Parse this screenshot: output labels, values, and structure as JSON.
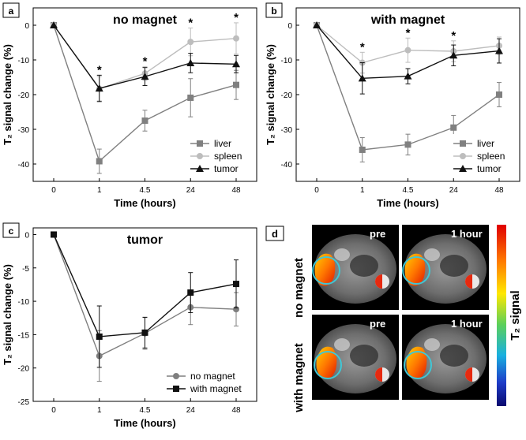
{
  "chart_data": [
    {
      "type": "line",
      "panel_label": "a",
      "title": "no magnet",
      "xlabel": "Time (hours)",
      "ylabel": "T₂ signal change (%)",
      "categories": [
        "0",
        "1",
        "4.5",
        "24",
        "48"
      ],
      "ylim": [
        -45,
        5
      ],
      "yticks": [
        "0",
        "-10",
        "-20",
        "-30",
        "-40"
      ],
      "legend_position": "bottom-right",
      "series": [
        {
          "name": "liver",
          "values": [
            0,
            -39.2,
            -27.5,
            -20.9,
            -17.2
          ],
          "errors": [
            0,
            3.5,
            3.0,
            5.5,
            4.2
          ],
          "color": "#808080",
          "marker": "square"
        },
        {
          "name": "spleen",
          "values": [
            0,
            -18.3,
            -13.9,
            -4.8,
            -3.8
          ],
          "errors": [
            0,
            3.5,
            2.0,
            4.0,
            4.5
          ],
          "color": "#bdbdbd",
          "marker": "circle"
        },
        {
          "name": "tumor",
          "values": [
            0,
            -18.2,
            -14.8,
            -10.9,
            -11.2
          ],
          "errors": [
            0,
            3.8,
            2.6,
            2.8,
            2.5
          ],
          "color": "#111111",
          "marker": "triangle"
        }
      ],
      "annotations": [
        "*",
        "*",
        "*",
        "*"
      ],
      "annotation_positions": [
        1,
        2,
        3,
        4
      ]
    },
    {
      "type": "line",
      "panel_label": "b",
      "title": "with magnet",
      "xlabel": "Time (hours)",
      "ylabel": "T₂ signal change (%)",
      "categories": [
        "0",
        "1",
        "4.5",
        "24",
        "48"
      ],
      "ylim": [
        -45,
        5
      ],
      "yticks": [
        "0",
        "-10",
        "-20",
        "-30",
        "-40"
      ],
      "legend_position": "bottom-right",
      "series": [
        {
          "name": "liver",
          "values": [
            0,
            -35.9,
            -34.4,
            -29.5,
            -20.0
          ],
          "errors": [
            0,
            3.5,
            3.0,
            3.5,
            3.5
          ],
          "color": "#808080",
          "marker": "square"
        },
        {
          "name": "spleen",
          "values": [
            0,
            -10.8,
            -7.2,
            -7.5,
            -5.9
          ],
          "errors": [
            0,
            3.0,
            3.5,
            3.0,
            2.5
          ],
          "color": "#bdbdbd",
          "marker": "circle"
        },
        {
          "name": "tumor",
          "values": [
            0,
            -15.3,
            -14.7,
            -8.7,
            -7.4
          ],
          "errors": [
            0,
            4.5,
            2.2,
            3.0,
            3.5
          ],
          "color": "#111111",
          "marker": "triangle"
        }
      ],
      "annotations": [
        "*",
        "*",
        "*"
      ],
      "annotation_positions": [
        1,
        2,
        3
      ]
    },
    {
      "type": "line",
      "panel_label": "c",
      "title": "tumor",
      "xlabel": "Time (hours)",
      "ylabel": "T₂ signal change (%)",
      "categories": [
        "0",
        "1",
        "4.5",
        "24",
        "48"
      ],
      "ylim": [
        -25,
        1
      ],
      "yticks": [
        "0",
        "-5",
        "-10",
        "-15",
        "-20",
        "-25"
      ],
      "legend_position": "bottom-right",
      "series": [
        {
          "name": "no magnet",
          "values": [
            0,
            -18.2,
            -14.8,
            -10.9,
            -11.2
          ],
          "errors": [
            0,
            3.8,
            2.4,
            2.6,
            2.5
          ],
          "color": "#7f7f7f",
          "marker": "circle"
        },
        {
          "name": "with magnet",
          "values": [
            0,
            -15.3,
            -14.7,
            -8.7,
            -7.4
          ],
          "errors": [
            0,
            4.6,
            2.3,
            3.0,
            3.6
          ],
          "color": "#111111",
          "marker": "square"
        }
      ]
    }
  ],
  "panel_d": {
    "panel_label": "d",
    "row_labels": [
      "no magnet",
      "with magnet"
    ],
    "column_labels": [
      "pre",
      "1 hour"
    ],
    "colorbar_label": "T₂ signal"
  }
}
